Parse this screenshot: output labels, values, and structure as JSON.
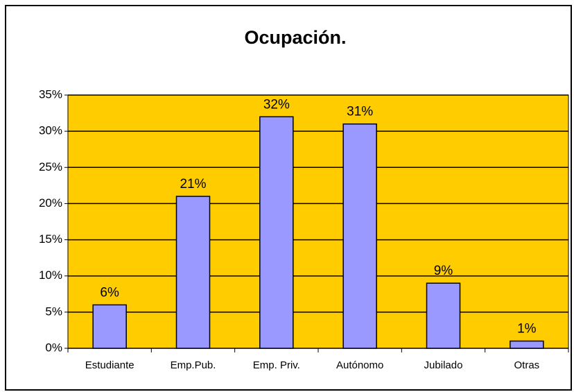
{
  "chart_data": {
    "type": "bar",
    "title": "Ocupación.",
    "categories": [
      "Estudiante",
      "Emp.Pub.",
      "Emp. Priv.",
      "Autónomo",
      "Jubilado",
      "Otras"
    ],
    "values": [
      6,
      21,
      32,
      31,
      9,
      1
    ],
    "value_labels": [
      "6%",
      "21%",
      "32%",
      "31%",
      "9%",
      "1%"
    ],
    "color": "#9999ff",
    "plot_background": "#ffcc00",
    "ylim": [
      0,
      35
    ],
    "yticks": [
      {
        "value": 0,
        "label": "0%"
      },
      {
        "value": 5,
        "label": "5%"
      },
      {
        "value": 10,
        "label": "10%"
      },
      {
        "value": 15,
        "label": "15%"
      },
      {
        "value": 20,
        "label": "20%"
      },
      {
        "value": 25,
        "label": "25%"
      },
      {
        "value": 30,
        "label": "30%"
      },
      {
        "value": 35,
        "label": "35%"
      }
    ],
    "grid": true
  }
}
